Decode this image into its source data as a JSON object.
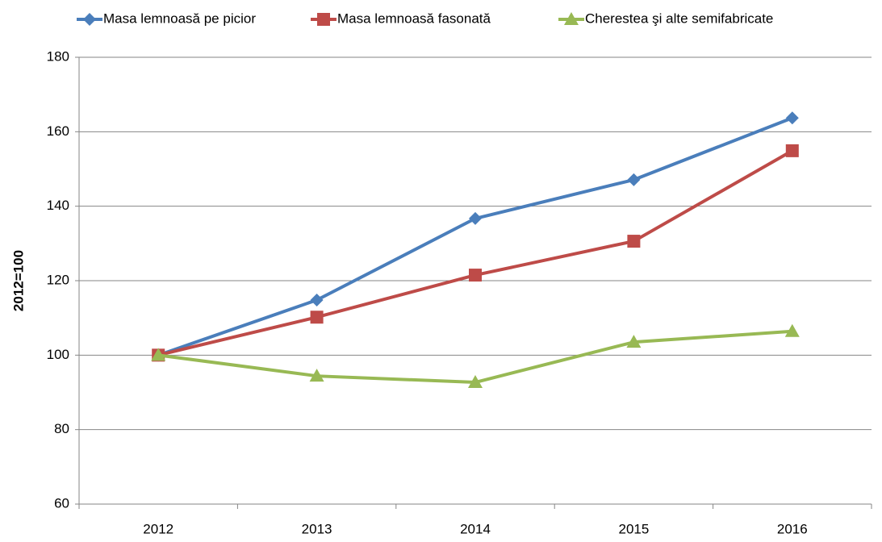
{
  "chart_data": {
    "type": "line",
    "y_label": "2012=100",
    "categories": [
      "2012",
      "2013",
      "2014",
      "2015",
      "2016"
    ],
    "series": [
      {
        "name": "Masa lemnoasă pe picior",
        "color": "#4a7ebb",
        "marker": "diamond",
        "values": [
          100,
          114.8,
          136.7,
          147.1,
          163.7
        ]
      },
      {
        "name": "Masa lemnoasă fasonată",
        "color": "#be4b48",
        "marker": "square",
        "values": [
          100,
          110.2,
          121.5,
          130.6,
          154.9
        ]
      },
      {
        "name": "Cherestea şi alte semifabricate",
        "color": "#98b954",
        "marker": "triangle",
        "values": [
          100,
          94.4,
          92.7,
          103.5,
          106.4
        ]
      }
    ],
    "ylim": [
      60,
      180
    ],
    "yticks": [
      60,
      80,
      100,
      120,
      140,
      160,
      180
    ],
    "grid": true,
    "legend": "top"
  }
}
